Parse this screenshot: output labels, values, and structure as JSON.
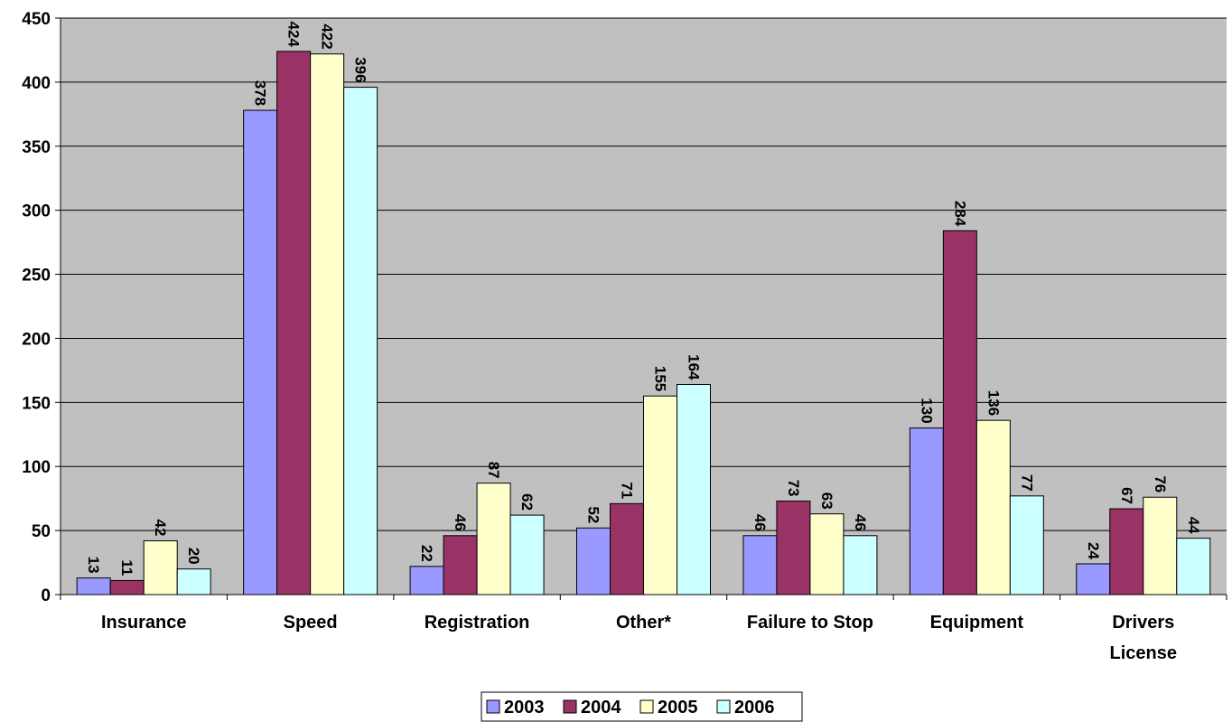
{
  "chart_data": {
    "type": "bar",
    "title": "",
    "xlabel": "",
    "ylabel": "",
    "ylim": [
      0,
      450
    ],
    "yticks": [
      0,
      50,
      100,
      150,
      200,
      250,
      300,
      350,
      400,
      450
    ],
    "grid": true,
    "legend_position": "bottom",
    "categories": [
      [
        "Insurance"
      ],
      [
        "Speed"
      ],
      [
        "Registration"
      ],
      [
        "Other*"
      ],
      [
        "Failure to Stop"
      ],
      [
        "Equipment"
      ],
      [
        "Drivers",
        "License"
      ]
    ],
    "series": [
      {
        "name": "2003",
        "color": "#9999FF",
        "values": [
          13,
          378,
          22,
          52,
          46,
          130,
          24
        ]
      },
      {
        "name": "2004",
        "color": "#993366",
        "values": [
          11,
          424,
          46,
          71,
          73,
          284,
          67
        ]
      },
      {
        "name": "2005",
        "color": "#FFFFCC",
        "values": [
          42,
          422,
          87,
          155,
          63,
          136,
          76
        ]
      },
      {
        "name": "2006",
        "color": "#CCFFFF",
        "values": [
          20,
          396,
          62,
          164,
          46,
          77,
          44
        ]
      }
    ],
    "plot_background": "#C0C0C0"
  }
}
